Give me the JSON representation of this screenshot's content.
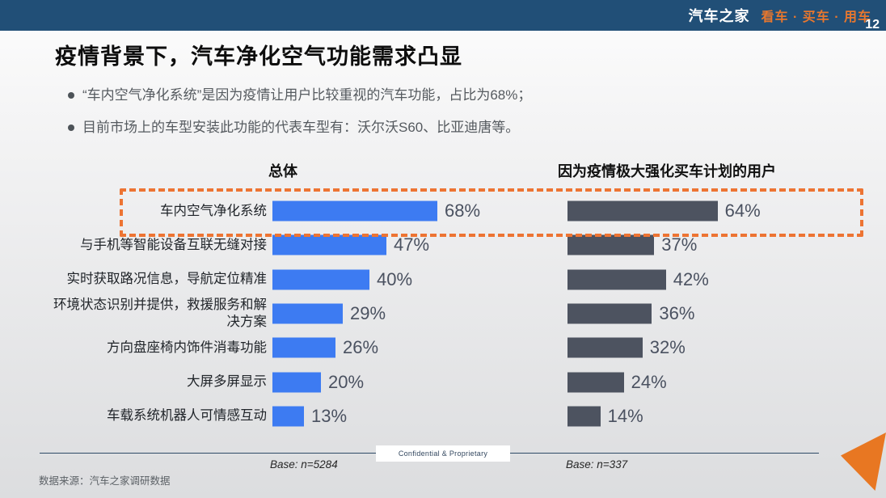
{
  "header": {
    "logo": "汽车之家",
    "tagline": "看车 · 买车 · 用车"
  },
  "title": "疫情背景下，汽车净化空气功能需求凸显",
  "bullets": [
    "“车内空气净化系统”是因为疫情让用户比较重视的汽车功能，占比为68%；",
    "目前市场上的车型安装此功能的代表车型有：沃尔沃S60、比亚迪唐等。"
  ],
  "chart_data": {
    "type": "bar",
    "orientation": "horizontal",
    "unit": "%",
    "categories": [
      "车内空气净化系统",
      "与手机等智能设备互联无缝对接",
      "实时获取路况信息，导航定位精准",
      "环境状态识别并提供，救援服务和解决方案",
      "方向盘座椅内饰件消毒功能",
      "大屏多屏显示",
      "车载系统机器人可情感互动"
    ],
    "series": [
      {
        "name": "总体",
        "color": "#3d7bf2",
        "values": [
          68,
          47,
          40,
          29,
          26,
          20,
          13
        ],
        "base": "Base:  n=5284"
      },
      {
        "name": "因为疫情极大强化买车计划的用户",
        "color": "#4d5360",
        "values": [
          64,
          37,
          42,
          36,
          32,
          24,
          14
        ],
        "base": "Base:  n=337"
      }
    ],
    "highlight": "车内空气净化系统 (row 1) outlined with orange dashed box",
    "xlim": [
      0,
      70
    ],
    "grid": false,
    "legend_position": "column headers above each series"
  },
  "footer": {
    "confidential": "Confidential & Proprietary",
    "base_left": "Base:  n=5284",
    "base_right": "Base:  n=337",
    "source": "数据来源：汽车之家调研数据",
    "page": "12"
  },
  "colors": {
    "topbar": "#214f77",
    "accent_orange": "#e87722",
    "dashed_highlight": "#ed7433",
    "bar_overall": "#3d7bf2",
    "bar_covid_users": "#4d5360"
  }
}
